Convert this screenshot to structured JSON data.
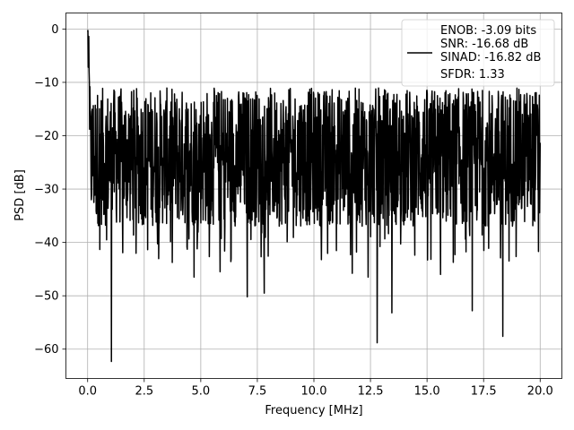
{
  "chart_data": {
    "type": "line",
    "title": "",
    "xlabel": "Frequency [MHz]",
    "ylabel": "PSD [dB]",
    "xlim": [
      -0.96,
      20.96
    ],
    "ylim": [
      -65.5,
      3.0
    ],
    "grid": true,
    "legend_position": "top-right",
    "line_color": "#000000",
    "x_ticks": [
      0.0,
      2.5,
      5.0,
      7.5,
      10.0,
      12.5,
      15.0,
      17.5,
      20.0
    ],
    "x_tick_labels": [
      "0.0",
      "2.5",
      "5.0",
      "7.5",
      "10.0",
      "12.5",
      "15.0",
      "17.5",
      "20.0"
    ],
    "y_ticks": [
      0,
      -10,
      -20,
      -30,
      -40,
      -50,
      -60
    ],
    "y_tick_labels": [
      "0",
      "−10",
      "−20",
      "−30",
      "−40",
      "−50",
      "−60"
    ],
    "legend_entries": [
      "ENOB: -3.09 bits",
      "SNR: -16.68 dB",
      "SINAD: -16.82 dB",
      "SFDR: 1.33"
    ],
    "series": [
      {
        "x_range": [
          0.0,
          20.0
        ],
        "peak": {
          "x": 0.0,
          "y": -0.5
        },
        "noise_band": {
          "upper_envelope": -12,
          "lower_envelope": -38,
          "mean": -24
        },
        "deep_dips": [
          {
            "x": 1.05,
            "y": -62.3
          },
          {
            "x": 12.8,
            "y": -58.8
          },
          {
            "x": 18.35,
            "y": -57.6
          },
          {
            "x": 7.05,
            "y": -50.2
          },
          {
            "x": 7.8,
            "y": -49.5
          },
          {
            "x": 13.45,
            "y": -53.2
          },
          {
            "x": 17.0,
            "y": -52.8
          },
          {
            "x": 4.7,
            "y": -46.5
          },
          {
            "x": 12.4,
            "y": -46.5
          },
          {
            "x": 11.7,
            "y": -45.8
          },
          {
            "x": 15.6,
            "y": -46.0
          },
          {
            "x": 5.85,
            "y": -45.5
          }
        ]
      }
    ]
  }
}
